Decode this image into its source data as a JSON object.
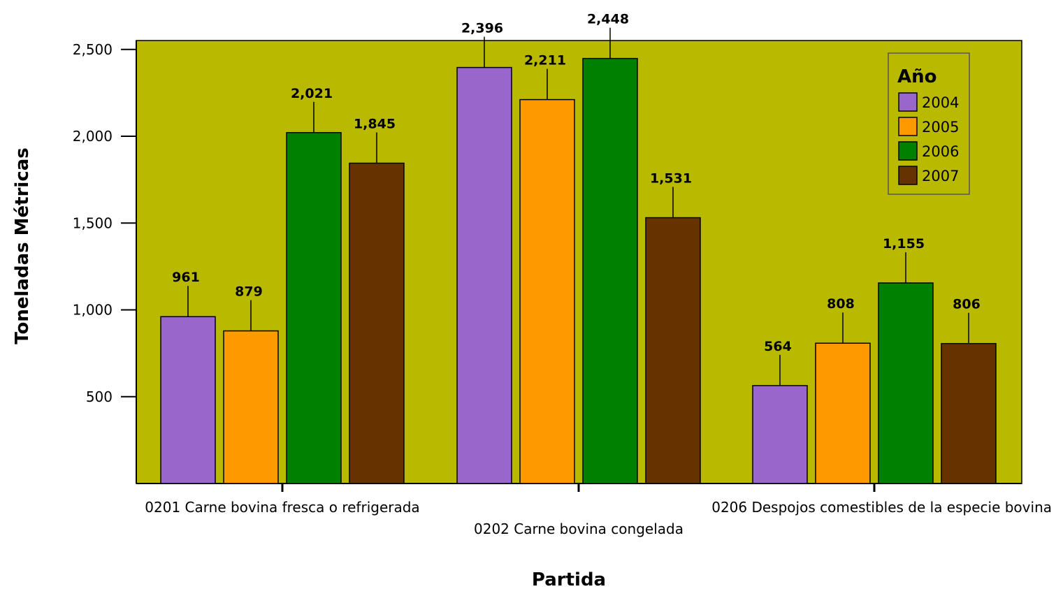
{
  "chart_data": {
    "type": "bar",
    "xlabel": "Partida",
    "ylabel": "Toneladas Métricas",
    "ylim": [
      0,
      2500
    ],
    "yticks": [
      500,
      1000,
      1500,
      2000,
      2500
    ],
    "ytick_labels": [
      "500",
      "1,000",
      "1,500",
      "2,000",
      "2,500"
    ],
    "categories": [
      "0201 Carne bovina fresca o refrigerada",
      "0202 Carne bovina congelada",
      "0206 Despojos comestibles de la especie bovina"
    ],
    "legend": {
      "title": "Año",
      "placement": "top-right"
    },
    "plot_background": "#B9B900",
    "series": [
      {
        "name": "2004",
        "color": "#9966CC",
        "values": [
          961,
          2396,
          564
        ],
        "labels": [
          "961",
          "2,396",
          "564"
        ]
      },
      {
        "name": "2005",
        "color": "#FF9900",
        "values": [
          879,
          2211,
          808
        ],
        "labels": [
          "879",
          "2,211",
          "808"
        ]
      },
      {
        "name": "2006",
        "color": "#008000",
        "values": [
          2021,
          2448,
          1155
        ],
        "labels": [
          "2,021",
          "2,448",
          "1,155"
        ]
      },
      {
        "name": "2007",
        "color": "#663300",
        "values": [
          1845,
          1531,
          806
        ],
        "labels": [
          "1,845",
          "1,531",
          "806"
        ]
      }
    ]
  }
}
